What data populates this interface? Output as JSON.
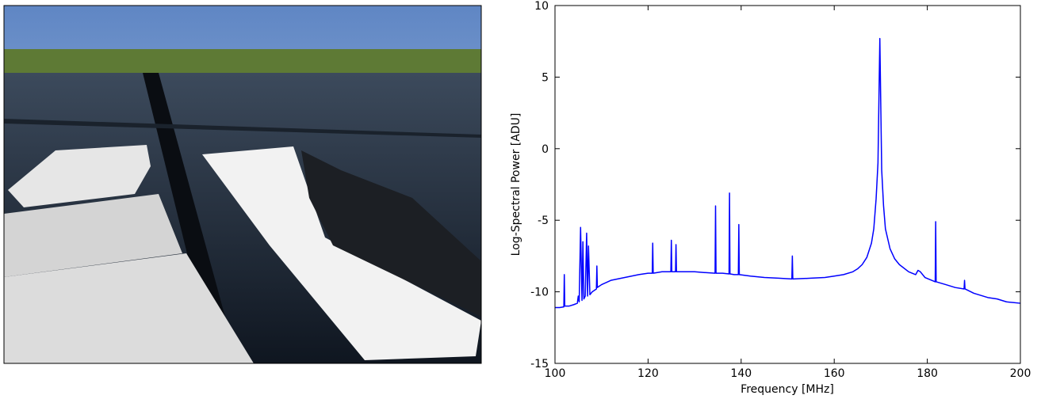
{
  "chart_data": {
    "type": "line",
    "xlabel": "Frequency [MHz]",
    "ylabel": "Log-Spectral Power [ADU]",
    "x": [
      100,
      101,
      101.9,
      102,
      102.1,
      103,
      104,
      104.8,
      105,
      105.2,
      105.5,
      105.8,
      106,
      106.2,
      106.5,
      106.8,
      107,
      107.2,
      107.5,
      108,
      108.9,
      109,
      109.1,
      110,
      112,
      115,
      118,
      120,
      120.9,
      121,
      121.1,
      123,
      124.9,
      125,
      125.1,
      125.9,
      126,
      126.1,
      128,
      130,
      132,
      134.4,
      134.5,
      134.6,
      136,
      137.4,
      137.5,
      137.6,
      138.5,
      139.4,
      139.5,
      139.6,
      142,
      145,
      148,
      150.9,
      151,
      151.1,
      155,
      158,
      160,
      162,
      164,
      165,
      166,
      167,
      168,
      168.5,
      169,
      169.4,
      169.8,
      170.2,
      170.6,
      171,
      172,
      173,
      174,
      176,
      177.5,
      178,
      178.5,
      179.5,
      181.7,
      181.8,
      181.9,
      184,
      186,
      187.9,
      188,
      188.1,
      190,
      193,
      195,
      197,
      200
    ],
    "series": [
      {
        "color": "#0000ff",
        "values": [
          -11.1,
          -11.1,
          -11.05,
          -8.8,
          -11,
          -11,
          -10.9,
          -10.8,
          -10.3,
          -10.7,
          -5.5,
          -10.6,
          -6.5,
          -10.5,
          -10.3,
          -5.9,
          -10.3,
          -6.8,
          -10.2,
          -10,
          -9.8,
          -8.2,
          -9.7,
          -9.5,
          -9.2,
          -9,
          -8.8,
          -8.7,
          -8.7,
          -6.6,
          -8.7,
          -8.6,
          -8.6,
          -6.4,
          -8.6,
          -8.6,
          -6.7,
          -8.6,
          -8.6,
          -8.6,
          -8.65,
          -8.7,
          -4,
          -8.7,
          -8.7,
          -8.75,
          -3.1,
          -8.75,
          -8.8,
          -8.8,
          -5.3,
          -8.8,
          -8.9,
          -9,
          -9.05,
          -9.1,
          -7.5,
          -9.1,
          -9.05,
          -9,
          -8.9,
          -8.8,
          -8.6,
          -8.4,
          -8.1,
          -7.6,
          -6.6,
          -5.6,
          -3.5,
          -1,
          7.7,
          -1.5,
          -4,
          -5.6,
          -7,
          -7.7,
          -8.1,
          -8.6,
          -8.8,
          -8.5,
          -8.6,
          -9,
          -9.3,
          -5.1,
          -9.3,
          -9.5,
          -9.7,
          -9.8,
          -9.2,
          -9.8,
          -10.1,
          -10.4,
          -10.5,
          -10.7,
          -10.8
        ]
      }
    ],
    "xlim": [
      100,
      200
    ],
    "xticks": [
      100,
      120,
      140,
      160,
      180,
      200
    ],
    "ylim": [
      -15,
      10
    ],
    "yticks": [
      -15,
      -10,
      -5,
      0,
      5,
      10
    ]
  }
}
